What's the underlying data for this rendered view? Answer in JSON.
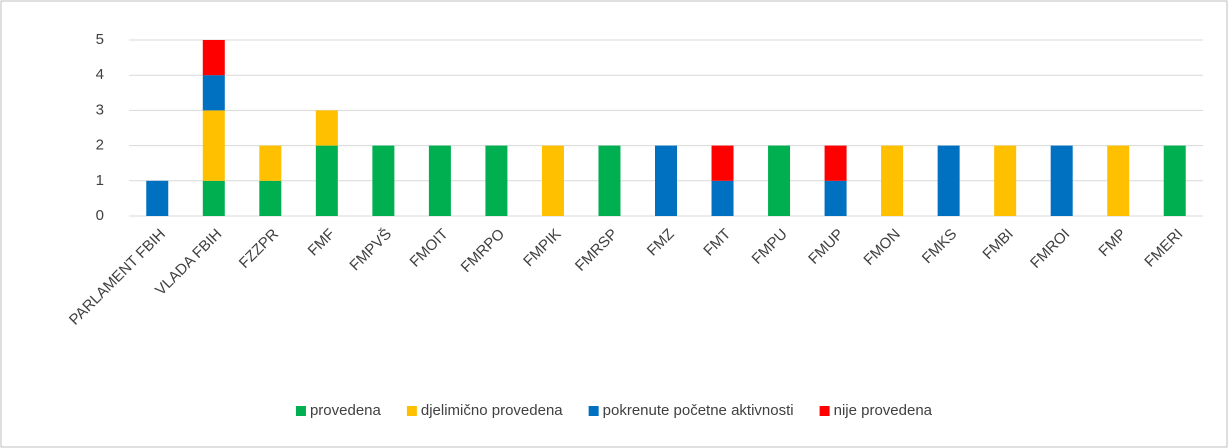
{
  "chart_data": {
    "type": "stacked_bar",
    "categories": [
      "PARLAMENT FBIH",
      "VLADA FBIH",
      "FZZPR",
      "FMF",
      "FMPVŠ",
      "FMOIT",
      "FMRPO",
      "FMPIK",
      "FMRSP",
      "FMZ",
      "FMT",
      "FMPU",
      "FMUP",
      "FMON",
      "FMKS",
      "FMBI",
      "FMROI",
      "FMP",
      "FMERI"
    ],
    "series": [
      {
        "name": "provedena",
        "color": "#00b050",
        "values": [
          0,
          1,
          1,
          2,
          2,
          2,
          2,
          0,
          2,
          0,
          0,
          2,
          0,
          0,
          0,
          0,
          0,
          0,
          2
        ]
      },
      {
        "name": "djelimično provedena",
        "color": "#ffc000",
        "values": [
          0,
          2,
          1,
          1,
          0,
          0,
          0,
          2,
          0,
          0,
          0,
          0,
          0,
          2,
          0,
          2,
          0,
          2,
          0
        ]
      },
      {
        "name": "pokrenute početne aktivnosti",
        "color": "#0070c0",
        "values": [
          1,
          1,
          0,
          0,
          0,
          0,
          0,
          0,
          0,
          2,
          1,
          0,
          1,
          0,
          2,
          0,
          2,
          0,
          0
        ]
      },
      {
        "name": "nije provedena",
        "color": "#ff0000",
        "values": [
          0,
          1,
          0,
          0,
          0,
          0,
          0,
          0,
          0,
          0,
          1,
          0,
          1,
          0,
          0,
          0,
          0,
          0,
          0
        ]
      }
    ],
    "ylim": [
      0,
      5
    ],
    "yticks": [
      0,
      1,
      2,
      3,
      4,
      5
    ],
    "grid": true,
    "legend": "bottom"
  }
}
